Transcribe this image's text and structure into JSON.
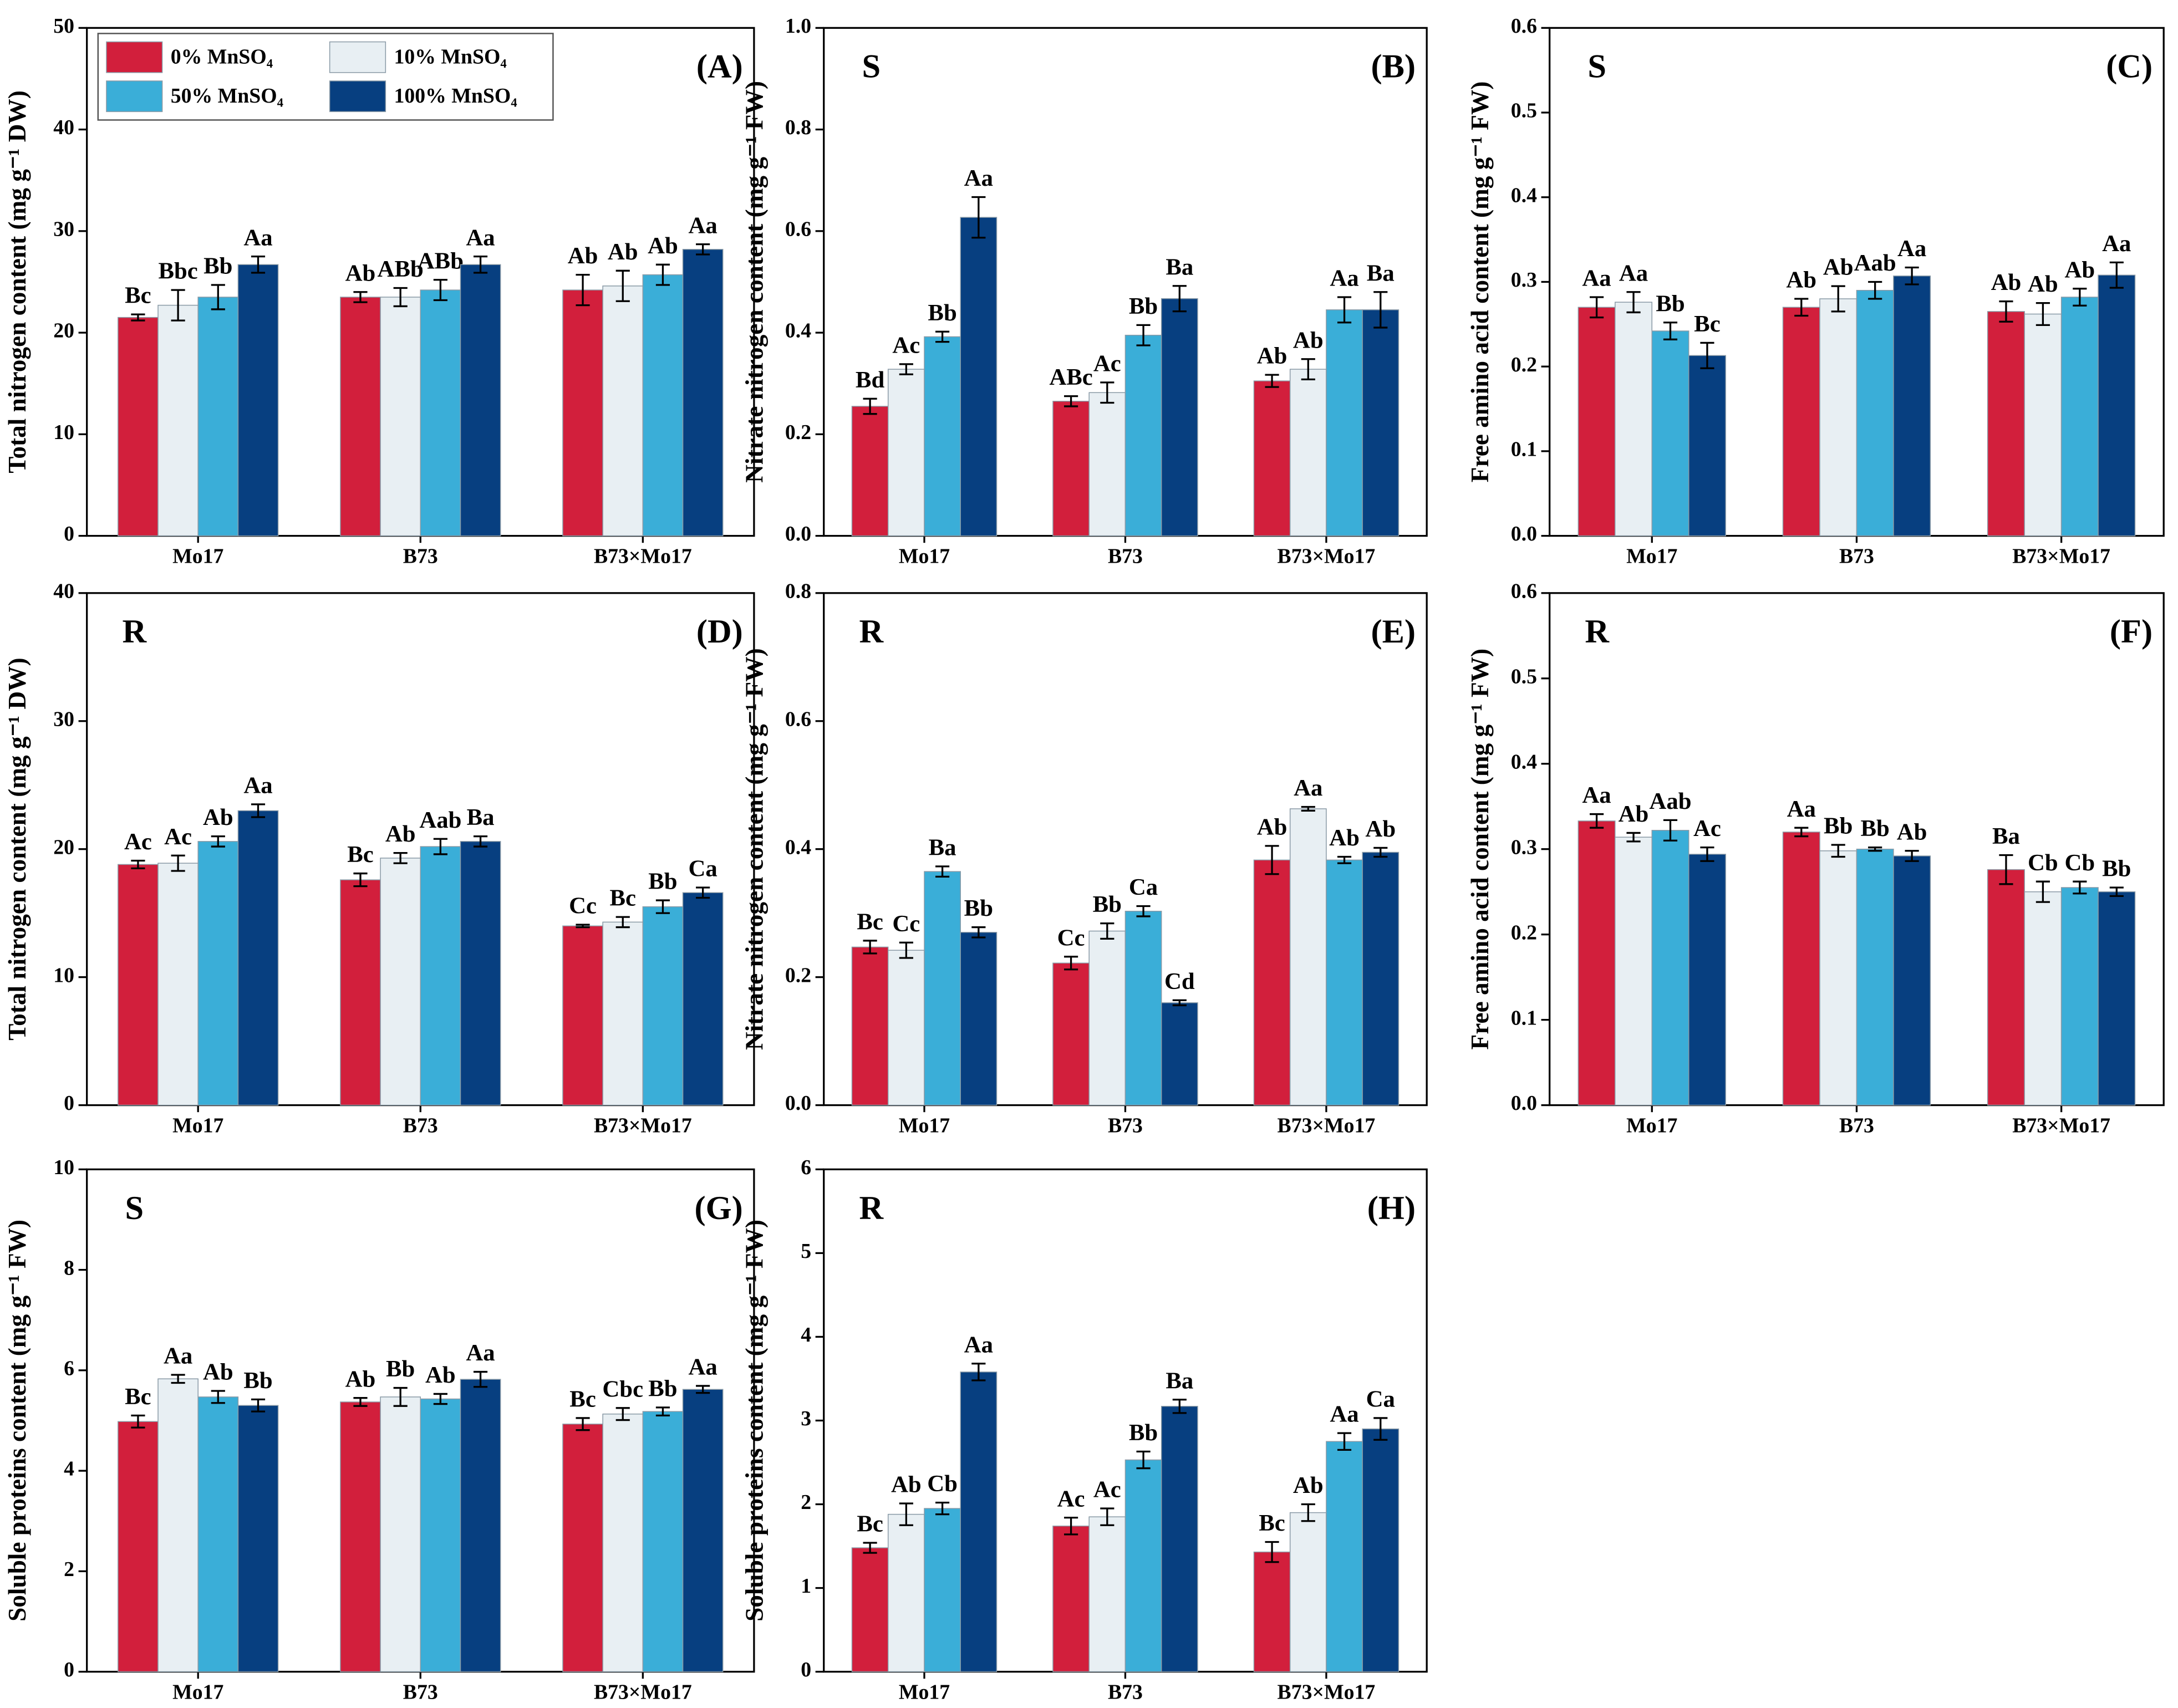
{
  "chart_data": [
    {
      "type": "bar",
      "label": "S",
      "panel": "(A)",
      "ylabel": "Total nitrogen content (mg g⁻¹ DW)",
      "categories": [
        "Mo17",
        "B73",
        "B73×Mo17"
      ],
      "ylim": [
        0,
        50
      ],
      "yticks": [
        0,
        10,
        20,
        30,
        40,
        50
      ],
      "series": [
        {
          "name": "0%   MnSO₄",
          "color": "#d21f3c",
          "values": [
            21.5,
            23.5,
            24.2
          ],
          "errors": [
            0.3,
            0.5,
            1.5
          ],
          "letters": [
            "Bc",
            "Ab",
            "Ab"
          ]
        },
        {
          "name": "10%   MnSO₄",
          "color": "#e8eff3",
          "values": [
            22.7,
            23.5,
            24.6
          ],
          "errors": [
            1.5,
            0.9,
            1.5
          ],
          "letters": [
            "Bbc",
            "ABb",
            "Ab"
          ]
        },
        {
          "name": "50% MnSO₄",
          "color": "#3aaed8",
          "values": [
            23.5,
            24.2,
            25.7
          ],
          "errors": [
            1.2,
            1.0,
            1.0
          ],
          "letters": [
            "Bb",
            "ABb",
            "Ab"
          ]
        },
        {
          "name": "100% MnSO₄",
          "color": "#073f80",
          "values": [
            26.7,
            26.7,
            28.2
          ],
          "errors": [
            0.8,
            0.8,
            0.5
          ],
          "letters": [
            "Aa",
            "Aa",
            "Aa"
          ]
        }
      ]
    },
    {
      "type": "bar",
      "label": "S",
      "panel": "(B)",
      "ylabel": "Nitrate nitrogen content (mg g⁻¹ FW)",
      "categories": [
        "Mo17",
        "B73",
        "B73×Mo17"
      ],
      "ylim": [
        0,
        1
      ],
      "yticks": [
        {
          "value": 0,
          "label": "0.0"
        },
        0.2,
        0.4,
        0.6,
        0.8,
        {
          "value": 1,
          "label": "1.0"
        }
      ],
      "series": [
        {
          "color": "#d21f3c",
          "values": [
            0.255,
            0.265,
            0.305
          ],
          "errors": [
            0.015,
            0.01,
            0.012
          ],
          "letters": [
            "Bd",
            "ABc",
            "Ab"
          ]
        },
        {
          "color": "#e8eff3",
          "values": [
            0.328,
            0.282,
            0.328
          ],
          "errors": [
            0.01,
            0.02,
            0.02
          ],
          "letters": [
            "Ac",
            "Ac",
            "Ab"
          ]
        },
        {
          "color": "#3aaed8",
          "values": [
            0.392,
            0.395,
            0.445
          ],
          "errors": [
            0.01,
            0.02,
            0.025
          ],
          "letters": [
            "Bb",
            "Bb",
            "Aa"
          ]
        },
        {
          "color": "#073f80",
          "values": [
            0.627,
            0.467,
            0.445
          ],
          "errors": [
            0.04,
            0.025,
            0.035
          ],
          "letters": [
            "Aa",
            "Ba",
            "Ba"
          ]
        }
      ]
    },
    {
      "type": "bar",
      "label": "S",
      "panel": "(C)",
      "ylabel": "Free amino acid content (mg g⁻¹ FW)",
      "categories": [
        "Mo17",
        "B73",
        "B73×Mo17"
      ],
      "ylim": [
        0,
        0.6
      ],
      "yticks": [
        {
          "value": 0,
          "label": "0.0"
        },
        0.1,
        0.2,
        0.3,
        0.4,
        0.5,
        0.6
      ],
      "series": [
        {
          "color": "#d21f3c",
          "values": [
            0.27,
            0.27,
            0.265
          ],
          "errors": [
            0.012,
            0.01,
            0.012
          ],
          "letters": [
            "Aa",
            "Ab",
            "Ab"
          ]
        },
        {
          "color": "#e8eff3",
          "values": [
            0.276,
            0.28,
            0.262
          ],
          "errors": [
            0.012,
            0.015,
            0.013
          ],
          "letters": [
            "Aa",
            "Ab",
            "Ab"
          ]
        },
        {
          "color": "#3aaed8",
          "values": [
            0.242,
            0.29,
            0.282
          ],
          "errors": [
            0.01,
            0.01,
            0.01
          ],
          "letters": [
            "Bb",
            "Aab",
            "Ab"
          ]
        },
        {
          "color": "#073f80",
          "values": [
            0.213,
            0.307,
            0.308
          ],
          "errors": [
            0.015,
            0.01,
            0.015
          ],
          "letters": [
            "Bc",
            "Aa",
            "Aa"
          ]
        }
      ]
    },
    {
      "type": "bar",
      "label": "R",
      "panel": "(D)",
      "ylabel": "Total nitrogen content (mg g⁻¹ DW)",
      "categories": [
        "Mo17",
        "B73",
        "B73×Mo17"
      ],
      "ylim": [
        0,
        40
      ],
      "yticks": [
        0,
        10,
        20,
        30,
        40
      ],
      "series": [
        {
          "color": "#d21f3c",
          "values": [
            18.8,
            17.6,
            14.0
          ],
          "errors": [
            0.3,
            0.5,
            0.1
          ],
          "letters": [
            "Ac",
            "Bc",
            "Cc"
          ]
        },
        {
          "color": "#e8eff3",
          "values": [
            18.9,
            19.3,
            14.3
          ],
          "errors": [
            0.6,
            0.4,
            0.4
          ],
          "letters": [
            "Ac",
            "Ab",
            "Bc"
          ]
        },
        {
          "color": "#3aaed8",
          "values": [
            20.6,
            20.2,
            15.5
          ],
          "errors": [
            0.4,
            0.6,
            0.5
          ],
          "letters": [
            "Ab",
            "Aab",
            "Bb"
          ]
        },
        {
          "color": "#073f80",
          "values": [
            23.0,
            20.6,
            16.6
          ],
          "errors": [
            0.5,
            0.4,
            0.4
          ],
          "letters": [
            "Aa",
            "Ba",
            "Ca"
          ]
        }
      ]
    },
    {
      "type": "bar",
      "label": "R",
      "panel": "(E)",
      "ylabel": "Nitrate nitrogen content (mg g⁻¹ FW)",
      "categories": [
        "Mo17",
        "B73",
        "B73×Mo17"
      ],
      "ylim": [
        0,
        0.8
      ],
      "yticks": [
        {
          "value": 0,
          "label": "0.0"
        },
        0.2,
        0.4,
        0.6,
        0.8
      ],
      "series": [
        {
          "color": "#d21f3c",
          "values": [
            0.247,
            0.222,
            0.383
          ],
          "errors": [
            0.01,
            0.01,
            0.022
          ],
          "letters": [
            "Bc",
            "Cc",
            "Ab"
          ]
        },
        {
          "color": "#e8eff3",
          "values": [
            0.242,
            0.272,
            0.463
          ],
          "errors": [
            0.012,
            0.012,
            0.003
          ],
          "letters": [
            "Cc",
            "Bb",
            "Aa"
          ]
        },
        {
          "color": "#3aaed8",
          "values": [
            0.365,
            0.303,
            0.383
          ],
          "errors": [
            0.008,
            0.008,
            0.005
          ],
          "letters": [
            "Ba",
            "Ca",
            "Ab"
          ]
        },
        {
          "color": "#073f80",
          "values": [
            0.27,
            0.16,
            0.395
          ],
          "errors": [
            0.008,
            0.004,
            0.007
          ],
          "letters": [
            "Bb",
            "Cd",
            "Ab"
          ]
        }
      ]
    },
    {
      "type": "bar",
      "label": "R",
      "panel": "(F)",
      "ylabel": "Free amino acid content (mg g⁻¹ FW)",
      "categories": [
        "Mo17",
        "B73",
        "B73×Mo17"
      ],
      "ylim": [
        0,
        0.6
      ],
      "yticks": [
        {
          "value": 0,
          "label": "0.0"
        },
        0.1,
        0.2,
        0.3,
        0.4,
        0.5,
        0.6
      ],
      "series": [
        {
          "color": "#d21f3c",
          "values": [
            0.333,
            0.32,
            0.276
          ],
          "errors": [
            0.008,
            0.005,
            0.017
          ],
          "letters": [
            "Aa",
            "Aa",
            "Ba"
          ]
        },
        {
          "color": "#e8eff3",
          "values": [
            0.314,
            0.298,
            0.25
          ],
          "errors": [
            0.005,
            0.007,
            0.012
          ],
          "letters": [
            "Ab",
            "Bb",
            "Cb"
          ]
        },
        {
          "color": "#3aaed8",
          "values": [
            0.322,
            0.3,
            0.255
          ],
          "errors": [
            0.012,
            0.002,
            0.007
          ],
          "letters": [
            "Aab",
            "Bb",
            "Cb"
          ]
        },
        {
          "color": "#073f80",
          "values": [
            0.294,
            0.292,
            0.25
          ],
          "errors": [
            0.008,
            0.006,
            0.005
          ],
          "letters": [
            "Ac",
            "Ab",
            "Bb"
          ]
        }
      ]
    },
    {
      "type": "bar",
      "label": "S",
      "panel": "(G)",
      "ylabel": "Soluble proteins content  (mg g⁻¹ FW)",
      "categories": [
        "Mo17",
        "B73",
        "B73×Mo17"
      ],
      "ylim": [
        0,
        10
      ],
      "yticks": [
        0,
        2,
        4,
        6,
        8,
        10
      ],
      "series": [
        {
          "color": "#d21f3c",
          "values": [
            4.98,
            5.37,
            4.93
          ],
          "errors": [
            0.12,
            0.08,
            0.12
          ],
          "letters": [
            "Bc",
            "Ab",
            "Bc"
          ]
        },
        {
          "color": "#e8eff3",
          "values": [
            5.83,
            5.47,
            5.13
          ],
          "errors": [
            0.08,
            0.18,
            0.12
          ],
          "letters": [
            "Aa",
            "Bb",
            "Cbc"
          ]
        },
        {
          "color": "#3aaed8",
          "values": [
            5.47,
            5.43,
            5.18
          ],
          "errors": [
            0.12,
            0.1,
            0.08
          ],
          "letters": [
            "Ab",
            "Ab",
            "Bb"
          ]
        },
        {
          "color": "#073f80",
          "values": [
            5.3,
            5.82,
            5.62
          ],
          "errors": [
            0.12,
            0.15,
            0.07
          ],
          "letters": [
            "Bb",
            "Aa",
            "Aa"
          ]
        }
      ]
    },
    {
      "type": "bar",
      "label": "R",
      "panel": "(H)",
      "ylabel": "Soluble proteins content  (mg g⁻¹ FW)",
      "categories": [
        "Mo17",
        "B73",
        "B73×Mo17"
      ],
      "ylim": [
        0,
        6
      ],
      "yticks": [
        0,
        1,
        2,
        3,
        4,
        5,
        6
      ],
      "series": [
        {
          "color": "#d21f3c",
          "values": [
            1.48,
            1.74,
            1.43
          ],
          "errors": [
            0.06,
            0.1,
            0.12
          ],
          "letters": [
            "Bc",
            "Ac",
            "Bc"
          ]
        },
        {
          "color": "#e8eff3",
          "values": [
            1.88,
            1.85,
            1.9
          ],
          "errors": [
            0.13,
            0.1,
            0.1
          ],
          "letters": [
            "Ab",
            "Ac",
            "Ab"
          ]
        },
        {
          "color": "#3aaed8",
          "values": [
            1.95,
            2.53,
            2.75
          ],
          "errors": [
            0.07,
            0.1,
            0.1
          ],
          "letters": [
            "Cb",
            "Bb",
            "Aa"
          ]
        },
        {
          "color": "#073f80",
          "values": [
            3.58,
            3.17,
            2.9
          ],
          "errors": [
            0.1,
            0.08,
            0.13
          ],
          "letters": [
            "Aa",
            "Ba",
            "Ca"
          ]
        }
      ]
    }
  ]
}
